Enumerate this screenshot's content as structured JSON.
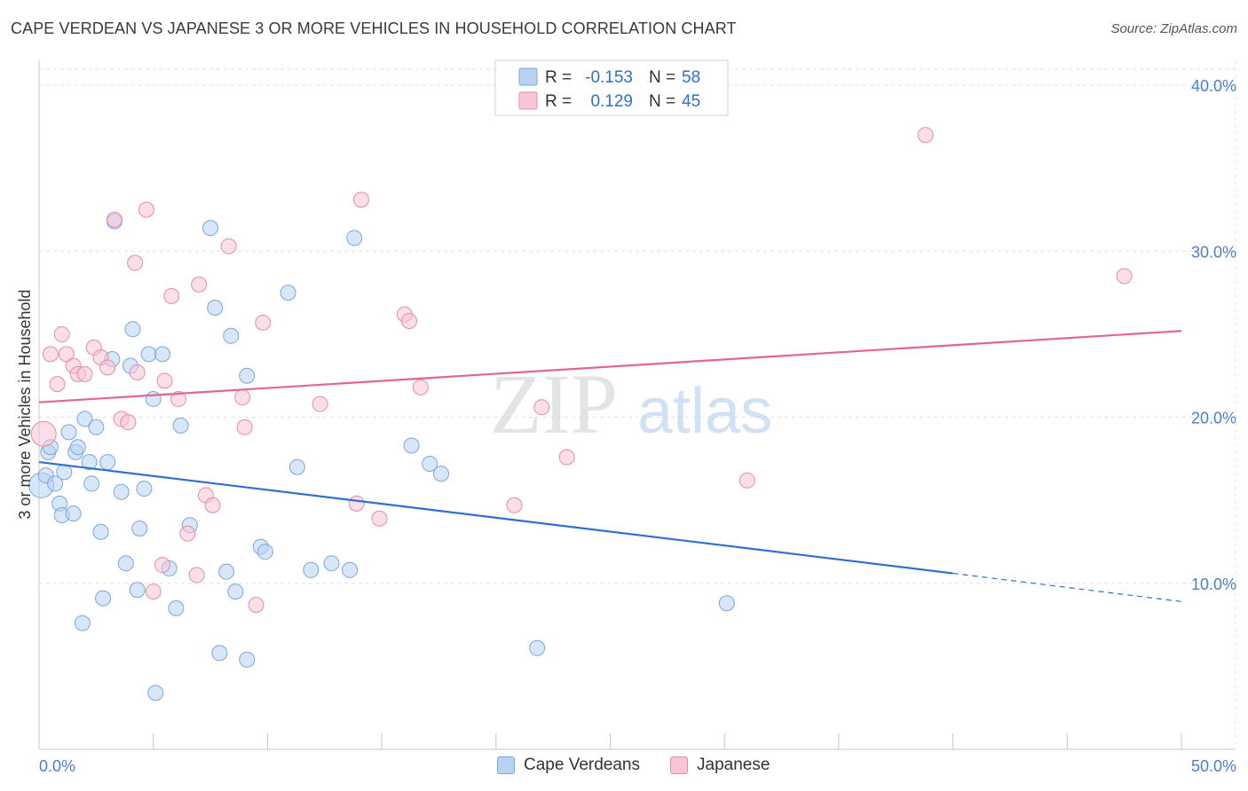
{
  "title": "CAPE VERDEAN VS JAPANESE 3 OR MORE VEHICLES IN HOUSEHOLD CORRELATION CHART",
  "source": "Source: ZipAtlas.com",
  "watermark": {
    "zip": "ZIP",
    "atlas": "atlas"
  },
  "colors": {
    "blue_fill": "#b8d3f2",
    "blue_stroke": "#7aa6df",
    "blue_line": "#2f6fcf",
    "pink_fill": "#f7c5d5",
    "pink_stroke": "#e88aaa",
    "pink_line": "#e2668f",
    "tick_text": "#4a7fcc",
    "grid": "#e3e3e3"
  },
  "legend": {
    "rows": [
      {
        "r_label": "R =",
        "r_value": "-0.153",
        "n_label": "N =",
        "n_value": "58"
      },
      {
        "r_label": "R =",
        "r_value": "0.129",
        "n_label": "N =",
        "n_value": "45"
      }
    ]
  },
  "bottom_legend": [
    {
      "label": "Cape Verdeans",
      "color": "blue"
    },
    {
      "label": "Japanese",
      "color": "pink"
    }
  ],
  "chart_data": {
    "type": "scatter",
    "title": "CAPE VERDEAN VS JAPANESE 3 OR MORE VEHICLES IN HOUSEHOLD CORRELATION CHART",
    "xlabel": "",
    "ylabel": "3 or more Vehicles in Household",
    "xlim": [
      0,
      50
    ],
    "ylim": [
      0,
      41.5
    ],
    "x_tick_labels": [
      "0.0%",
      "50.0%"
    ],
    "y_ticks": [
      10,
      20,
      30,
      40
    ],
    "y_tick_labels": [
      "10.0%",
      "20.0%",
      "30.0%",
      "40.0%"
    ],
    "grid": true,
    "series": [
      {
        "name": "Cape Verdeans",
        "color": "blue",
        "trend": {
          "x0": 0,
          "y0": 17.3,
          "x1": 40,
          "y1": 10.6,
          "dash_to_x": 50,
          "dash_to_y": 8.9
        },
        "points": [
          [
            0.1,
            15.9
          ],
          [
            0.3,
            16.5
          ],
          [
            0.4,
            17.9
          ],
          [
            0.5,
            18.2
          ],
          [
            0.7,
            16.0
          ],
          [
            0.9,
            14.8
          ],
          [
            1.0,
            14.1
          ],
          [
            1.1,
            16.7
          ],
          [
            1.3,
            19.1
          ],
          [
            1.5,
            14.2
          ],
          [
            1.6,
            17.9
          ],
          [
            1.7,
            18.2
          ],
          [
            1.9,
            7.6
          ],
          [
            2.0,
            19.9
          ],
          [
            2.2,
            17.3
          ],
          [
            2.3,
            16.0
          ],
          [
            2.5,
            19.4
          ],
          [
            2.7,
            13.1
          ],
          [
            2.8,
            9.1
          ],
          [
            3.0,
            17.3
          ],
          [
            3.2,
            23.5
          ],
          [
            3.3,
            31.8
          ],
          [
            3.6,
            15.5
          ],
          [
            3.8,
            11.2
          ],
          [
            4.0,
            23.1
          ],
          [
            4.1,
            25.3
          ],
          [
            4.3,
            9.6
          ],
          [
            4.4,
            13.3
          ],
          [
            4.6,
            15.7
          ],
          [
            4.8,
            23.8
          ],
          [
            5.0,
            21.1
          ],
          [
            5.1,
            3.4
          ],
          [
            5.4,
            23.8
          ],
          [
            5.7,
            10.9
          ],
          [
            6.0,
            8.5
          ],
          [
            6.2,
            19.5
          ],
          [
            6.6,
            13.5
          ],
          [
            7.5,
            31.4
          ],
          [
            7.7,
            26.6
          ],
          [
            7.9,
            5.8
          ],
          [
            8.2,
            10.7
          ],
          [
            8.4,
            24.9
          ],
          [
            8.6,
            9.5
          ],
          [
            9.1,
            5.4
          ],
          [
            9.1,
            22.5
          ],
          [
            9.7,
            12.2
          ],
          [
            9.9,
            11.9
          ],
          [
            10.9,
            27.5
          ],
          [
            11.3,
            17.0
          ],
          [
            11.9,
            10.8
          ],
          [
            12.8,
            11.2
          ],
          [
            13.6,
            10.8
          ],
          [
            13.8,
            30.8
          ],
          [
            16.3,
            18.3
          ],
          [
            17.1,
            17.2
          ],
          [
            17.6,
            16.6
          ],
          [
            21.8,
            6.1
          ],
          [
            30.1,
            8.8
          ]
        ]
      },
      {
        "name": "Japanese",
        "color": "pink",
        "trend": {
          "x0": 0,
          "y0": 20.9,
          "x1": 50,
          "y1": 25.2
        },
        "points": [
          [
            0.2,
            19.0
          ],
          [
            0.5,
            23.8
          ],
          [
            0.8,
            22.0
          ],
          [
            1.0,
            25.0
          ],
          [
            1.2,
            23.8
          ],
          [
            1.5,
            23.1
          ],
          [
            1.7,
            22.6
          ],
          [
            2.0,
            22.6
          ],
          [
            2.4,
            24.2
          ],
          [
            2.7,
            23.6
          ],
          [
            3.0,
            23.0
          ],
          [
            3.3,
            31.9
          ],
          [
            3.6,
            19.9
          ],
          [
            3.9,
            19.7
          ],
          [
            4.2,
            29.3
          ],
          [
            4.3,
            22.7
          ],
          [
            4.7,
            32.5
          ],
          [
            5.0,
            9.5
          ],
          [
            5.4,
            11.1
          ],
          [
            5.5,
            22.2
          ],
          [
            5.8,
            27.3
          ],
          [
            6.1,
            21.1
          ],
          [
            6.5,
            13.0
          ],
          [
            6.9,
            10.5
          ],
          [
            7.0,
            28.0
          ],
          [
            7.3,
            15.3
          ],
          [
            7.6,
            14.7
          ],
          [
            8.3,
            30.3
          ],
          [
            8.9,
            21.2
          ],
          [
            9.0,
            19.4
          ],
          [
            9.5,
            8.7
          ],
          [
            9.8,
            25.7
          ],
          [
            12.3,
            20.8
          ],
          [
            13.9,
            14.8
          ],
          [
            14.1,
            33.1
          ],
          [
            14.9,
            13.9
          ],
          [
            16.0,
            26.2
          ],
          [
            16.2,
            25.8
          ],
          [
            16.7,
            21.8
          ],
          [
            20.8,
            14.7
          ],
          [
            22.0,
            20.6
          ],
          [
            23.1,
            17.6
          ],
          [
            31.0,
            16.2
          ],
          [
            38.8,
            37.0
          ],
          [
            47.5,
            28.5
          ]
        ]
      }
    ]
  }
}
